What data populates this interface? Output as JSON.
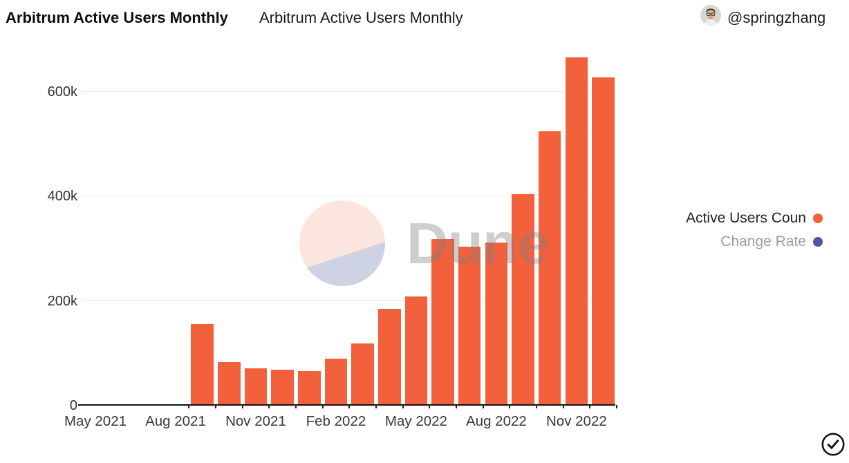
{
  "header": {
    "title_bold": "Arbitrum Active Users Monthly",
    "title_regular": "Arbitrum Active Users Monthly",
    "author_handle": "@springzhang"
  },
  "legend": {
    "items": [
      {
        "label": "Active Users Coun",
        "color": "#f2603c",
        "active": true
      },
      {
        "label": "Change Rate",
        "color": "#5053a4",
        "active": false
      }
    ]
  },
  "watermark": {
    "text": "Dune"
  },
  "icons": {
    "author_avatar": "avatar-photo",
    "bottom_right": "verified-check-icon"
  },
  "chart_data": {
    "type": "bar",
    "title": "Arbitrum Active Users Monthly",
    "bar_color": "#f2603c",
    "categories": [
      "May 2021",
      "Jun 2021",
      "Jul 2021",
      "Aug 2021",
      "Sep 2021",
      "Oct 2021",
      "Nov 2021",
      "Dec 2021",
      "Jan 2022",
      "Feb 2022",
      "Mar 2022",
      "Apr 2022",
      "May 2022",
      "Jun 2022",
      "Jul 2022",
      "Aug 2022",
      "Sep 2022",
      "Oct 2022",
      "Nov 2022",
      "Dec 2022"
    ],
    "series": [
      {
        "name": "Active Users Count",
        "values": [
          null,
          null,
          null,
          null,
          155000,
          82000,
          70000,
          67000,
          65000,
          89000,
          118000,
          184000,
          208000,
          317000,
          303000,
          310000,
          403000,
          524000,
          665000,
          627000
        ]
      },
      {
        "name": "Change Rate",
        "values": [],
        "hidden": true
      }
    ],
    "x_tick_labels": [
      "May 2021",
      "Aug 2021",
      "Nov 2021",
      "Feb 2022",
      "May 2022",
      "Aug 2022",
      "Nov 2022"
    ],
    "y_ticks": [
      {
        "label": "0",
        "value": 0
      },
      {
        "label": "200k",
        "value": 200000
      },
      {
        "label": "400k",
        "value": 400000
      },
      {
        "label": "600k",
        "value": 600000
      }
    ],
    "ylim": [
      0,
      695000
    ],
    "grid": true,
    "legend_position": "right"
  }
}
